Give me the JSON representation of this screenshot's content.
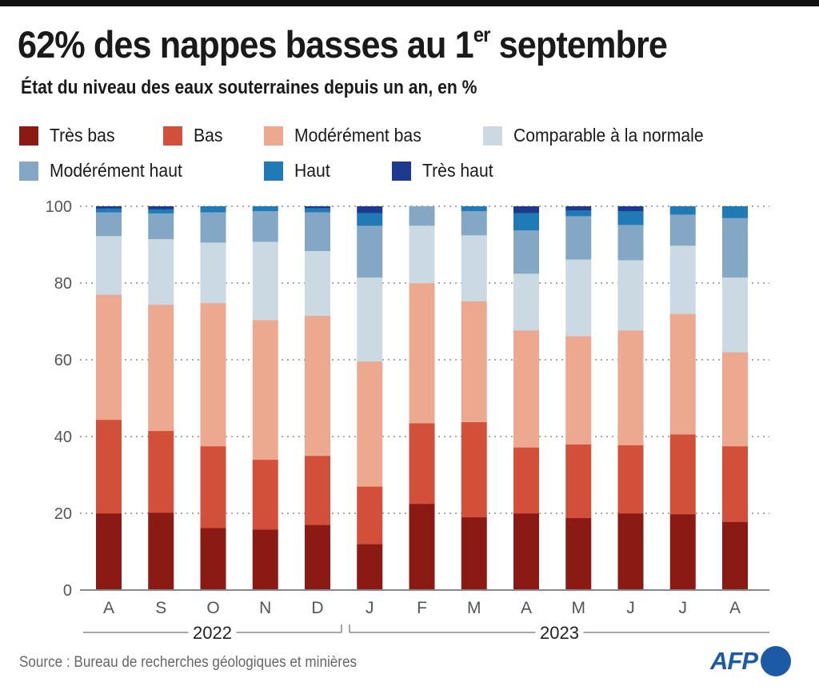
{
  "header": {
    "title_main": "62% des nappes basses au 1",
    "title_sup": "er",
    "title_end": " septembre",
    "subtitle": "État du niveau des eaux souterraines depuis un an, en %"
  },
  "legend": [
    {
      "label": "Très bas",
      "color": "#8b1a14"
    },
    {
      "label": "Bas",
      "color": "#d2503a"
    },
    {
      "label": "Modérément bas",
      "color": "#eda98f"
    },
    {
      "label": "Comparable à la normale",
      "color": "#cbd9e3"
    },
    {
      "label": "Modérément haut",
      "color": "#84a7c6"
    },
    {
      "label": "Haut",
      "color": "#1f7ab5"
    },
    {
      "label": "Très haut",
      "color": "#1e3a8e"
    }
  ],
  "chart_data": {
    "type": "bar",
    "stacked": true,
    "title": "62% des nappes basses au 1er septembre",
    "subtitle": "État du niveau des eaux souterraines depuis un an, en %",
    "xlabel": "",
    "ylabel": "",
    "ylim": [
      0,
      100
    ],
    "yticks": [
      0,
      20,
      40,
      60,
      80,
      100
    ],
    "grid": true,
    "legend_position": "top-left",
    "categories": [
      "A",
      "S",
      "O",
      "N",
      "D",
      "J",
      "F",
      "M",
      "A",
      "M",
      "J",
      "J",
      "A"
    ],
    "year_groups": [
      {
        "label": "2022",
        "from": 0,
        "to": 4
      },
      {
        "label": "2023",
        "from": 5,
        "to": 12
      }
    ],
    "series": [
      {
        "name": "Très bas",
        "color": "#8b1a14",
        "values": [
          20,
          20.2,
          16.2,
          15.8,
          17,
          12,
          22.5,
          19,
          20,
          18.8,
          20,
          19.8,
          17.8
        ]
      },
      {
        "name": "Bas",
        "color": "#d2503a",
        "values": [
          24.4,
          21.3,
          21.3,
          18.2,
          18,
          15,
          21,
          24.8,
          17.2,
          19.2,
          17.8,
          20.8,
          19.7
        ]
      },
      {
        "name": "Modérément bas",
        "color": "#eda98f",
        "values": [
          32.6,
          32.9,
          37.3,
          36.4,
          36.5,
          32.6,
          36.5,
          31.5,
          30.5,
          28.2,
          29.9,
          31.4,
          24.5
        ]
      },
      {
        "name": "Comparable à la normale",
        "color": "#cbd9e3",
        "values": [
          15.3,
          17.1,
          15.8,
          20.4,
          16.9,
          21.9,
          15,
          17.2,
          14.8,
          20,
          18.3,
          17.8,
          19.5
        ]
      },
      {
        "name": "Modérément haut",
        "color": "#84a7c6",
        "values": [
          6.2,
          6.7,
          7.9,
          8,
          10.1,
          13.5,
          5,
          6.3,
          11.3,
          11.3,
          9.2,
          8.1,
          15.5
        ]
      },
      {
        "name": "Haut",
        "color": "#1f7ab5",
        "values": [
          1,
          1.1,
          1.5,
          1.2,
          1.1,
          3.3,
          0,
          1.2,
          4.5,
          1.5,
          3.6,
          2.1,
          3
        ]
      },
      {
        "name": "Très haut",
        "color": "#1e3a8e",
        "values": [
          0.5,
          0.7,
          0,
          0,
          0.4,
          1.7,
          0,
          0,
          1.7,
          1,
          1.2,
          0,
          0
        ]
      }
    ]
  },
  "footer": {
    "source": "Source : Bureau de recherches géologiques et minières",
    "logo_text": "AFP"
  }
}
